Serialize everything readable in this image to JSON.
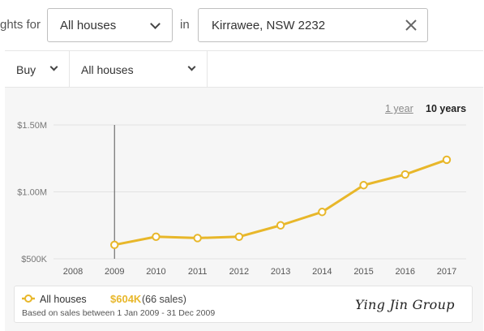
{
  "search": {
    "prefix": "ghts for",
    "property_type": "All houses",
    "in_label": "in",
    "location": "Kirrawee, NSW 2232"
  },
  "filters": {
    "mode": "Buy",
    "type": "All houses"
  },
  "range": {
    "one_year": "1 year",
    "ten_years": "10 years"
  },
  "legend": {
    "series": "All houses",
    "price": "$604K",
    "sales": "(66 sales)",
    "note": "Based on sales between 1 Jan 2009 - 31 Dec 2009"
  },
  "watermark": "Ying Jin Group",
  "colors": {
    "series": "#e8b72a",
    "grid": "#e2e2e2",
    "axis_text": "#777777",
    "cursor": "#555555"
  },
  "chart_data": {
    "type": "line",
    "x": [
      2008,
      2009,
      2010,
      2011,
      2012,
      2013,
      2014,
      2015,
      2016,
      2017
    ],
    "xtick_labels": [
      "2008",
      "2009",
      "2010",
      "2011",
      "2012",
      "2013",
      "2014",
      "2015",
      "2016",
      "2017"
    ],
    "series": [
      {
        "name": "All houses",
        "x": [
          2009,
          2010,
          2011,
          2012,
          2013,
          2014,
          2015,
          2016,
          2017
        ],
        "values": [
          604000,
          665000,
          655000,
          665000,
          750000,
          850000,
          1050000,
          1130000,
          1240000
        ]
      }
    ],
    "ylim": [
      500000,
      1500000
    ],
    "yticks": [
      500000,
      1000000,
      1500000
    ],
    "ytick_labels": [
      "$500K",
      "$1.00M",
      "$1.50M"
    ],
    "highlight_x": 2009,
    "grid": true
  }
}
